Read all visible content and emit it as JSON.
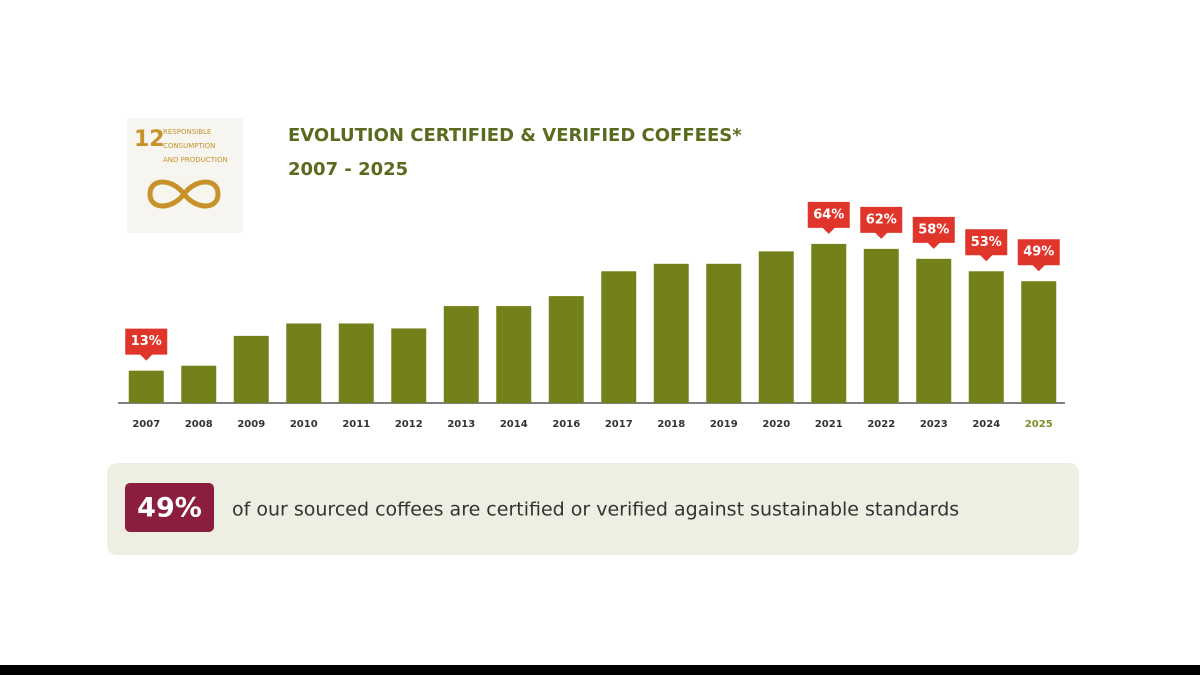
{
  "logo": {
    "number": "12",
    "lines": [
      "RESPONSIBLE",
      "CONSUMPTION",
      "AND PRODUCTION"
    ]
  },
  "chart_data": {
    "type": "bar",
    "title": "EVOLUTION CERTIFIED & VERIFIED COFFEES*",
    "subtitle": "2007 - 2025",
    "categories": [
      "2007",
      "2008",
      "2009",
      "2010",
      "2011",
      "2012",
      "2013",
      "2014",
      "2016",
      "2017",
      "2018",
      "2019",
      "2020",
      "2021",
      "2022",
      "2023",
      "2024",
      "2025"
    ],
    "values": [
      13,
      15,
      27,
      32,
      32,
      30,
      39,
      39,
      43,
      53,
      56,
      56,
      61,
      64,
      62,
      58,
      53,
      49
    ],
    "value_labels": [
      "13%",
      null,
      null,
      null,
      null,
      null,
      null,
      null,
      null,
      null,
      null,
      null,
      null,
      "64%",
      "62%",
      "58%",
      "53%",
      "49%"
    ],
    "color": "#74811b",
    "label_color": "#e0352b",
    "last_category_color": "#7d8f2a",
    "ylim": [
      0,
      70
    ]
  },
  "summary": {
    "figure": "49%",
    "text": "of our sourced coffees are certified or verified against sustainable standards"
  }
}
